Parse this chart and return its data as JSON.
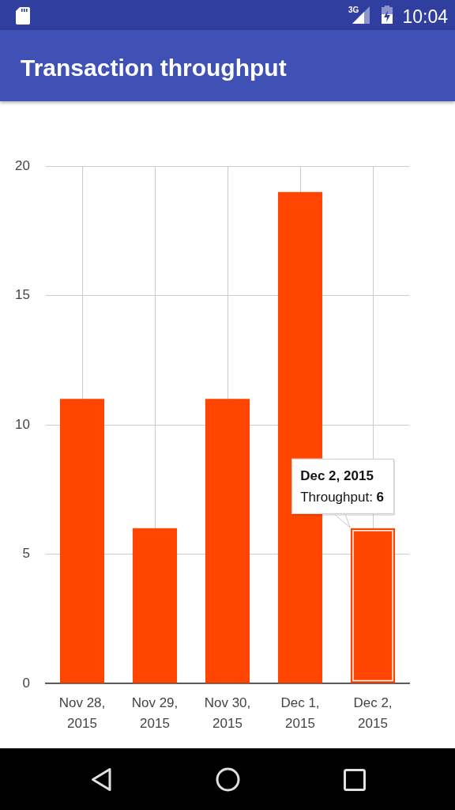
{
  "chart_data": {
    "type": "bar",
    "title": "Transaction throughput",
    "categories": [
      "Nov 28, 2015",
      "Nov 29, 2015",
      "Nov 30, 2015",
      "Dec 1, 2015",
      "Dec 2, 2015"
    ],
    "values": [
      11,
      6,
      11,
      19,
      6
    ],
    "color": "#ff4500",
    "ylim": [
      0,
      20
    ],
    "yticks": [
      0,
      5,
      10,
      15,
      20
    ],
    "grid": true,
    "annotations": [
      "3G",
      "10:04",
      {
        "text": "Dec 2, 2015\nThroughput: 6",
        "x": "Dec 2, 2015",
        "y": 6
      }
    ]
  }
}
